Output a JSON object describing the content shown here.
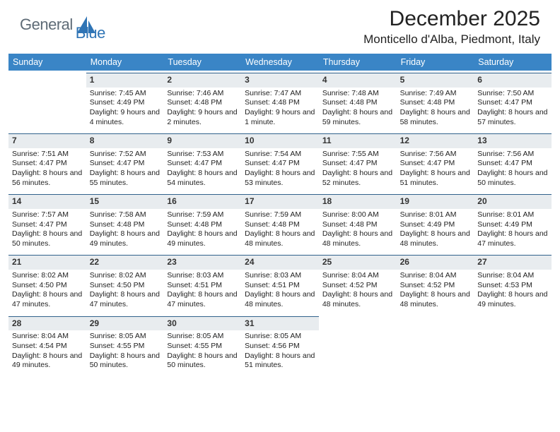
{
  "brand": {
    "word1": "General",
    "word2": "Blue",
    "icon_color": "#2f74b5",
    "text_color1": "#5e6b76"
  },
  "title": {
    "main": "December 2025",
    "sub": "Monticello d'Alba, Piedmont, Italy"
  },
  "colors": {
    "header_bg": "#3a85c6",
    "daynum_bg": "#e8ecef",
    "day_border": "#31628c"
  },
  "dow_labels": [
    "Sunday",
    "Monday",
    "Tuesday",
    "Wednesday",
    "Thursday",
    "Friday",
    "Saturday"
  ],
  "first_weekday_offset": 1,
  "days_in_month": 31,
  "days": {
    "1": {
      "sunrise": "7:45 AM",
      "sunset": "4:49 PM",
      "daylight": "9 hours and 4 minutes."
    },
    "2": {
      "sunrise": "7:46 AM",
      "sunset": "4:48 PM",
      "daylight": "9 hours and 2 minutes."
    },
    "3": {
      "sunrise": "7:47 AM",
      "sunset": "4:48 PM",
      "daylight": "9 hours and 1 minute."
    },
    "4": {
      "sunrise": "7:48 AM",
      "sunset": "4:48 PM",
      "daylight": "8 hours and 59 minutes."
    },
    "5": {
      "sunrise": "7:49 AM",
      "sunset": "4:48 PM",
      "daylight": "8 hours and 58 minutes."
    },
    "6": {
      "sunrise": "7:50 AM",
      "sunset": "4:47 PM",
      "daylight": "8 hours and 57 minutes."
    },
    "7": {
      "sunrise": "7:51 AM",
      "sunset": "4:47 PM",
      "daylight": "8 hours and 56 minutes."
    },
    "8": {
      "sunrise": "7:52 AM",
      "sunset": "4:47 PM",
      "daylight": "8 hours and 55 minutes."
    },
    "9": {
      "sunrise": "7:53 AM",
      "sunset": "4:47 PM",
      "daylight": "8 hours and 54 minutes."
    },
    "10": {
      "sunrise": "7:54 AM",
      "sunset": "4:47 PM",
      "daylight": "8 hours and 53 minutes."
    },
    "11": {
      "sunrise": "7:55 AM",
      "sunset": "4:47 PM",
      "daylight": "8 hours and 52 minutes."
    },
    "12": {
      "sunrise": "7:56 AM",
      "sunset": "4:47 PM",
      "daylight": "8 hours and 51 minutes."
    },
    "13": {
      "sunrise": "7:56 AM",
      "sunset": "4:47 PM",
      "daylight": "8 hours and 50 minutes."
    },
    "14": {
      "sunrise": "7:57 AM",
      "sunset": "4:47 PM",
      "daylight": "8 hours and 50 minutes."
    },
    "15": {
      "sunrise": "7:58 AM",
      "sunset": "4:48 PM",
      "daylight": "8 hours and 49 minutes."
    },
    "16": {
      "sunrise": "7:59 AM",
      "sunset": "4:48 PM",
      "daylight": "8 hours and 49 minutes."
    },
    "17": {
      "sunrise": "7:59 AM",
      "sunset": "4:48 PM",
      "daylight": "8 hours and 48 minutes."
    },
    "18": {
      "sunrise": "8:00 AM",
      "sunset": "4:48 PM",
      "daylight": "8 hours and 48 minutes."
    },
    "19": {
      "sunrise": "8:01 AM",
      "sunset": "4:49 PM",
      "daylight": "8 hours and 48 minutes."
    },
    "20": {
      "sunrise": "8:01 AM",
      "sunset": "4:49 PM",
      "daylight": "8 hours and 47 minutes."
    },
    "21": {
      "sunrise": "8:02 AM",
      "sunset": "4:50 PM",
      "daylight": "8 hours and 47 minutes."
    },
    "22": {
      "sunrise": "8:02 AM",
      "sunset": "4:50 PM",
      "daylight": "8 hours and 47 minutes."
    },
    "23": {
      "sunrise": "8:03 AM",
      "sunset": "4:51 PM",
      "daylight": "8 hours and 47 minutes."
    },
    "24": {
      "sunrise": "8:03 AM",
      "sunset": "4:51 PM",
      "daylight": "8 hours and 48 minutes."
    },
    "25": {
      "sunrise": "8:04 AM",
      "sunset": "4:52 PM",
      "daylight": "8 hours and 48 minutes."
    },
    "26": {
      "sunrise": "8:04 AM",
      "sunset": "4:52 PM",
      "daylight": "8 hours and 48 minutes."
    },
    "27": {
      "sunrise": "8:04 AM",
      "sunset": "4:53 PM",
      "daylight": "8 hours and 49 minutes."
    },
    "28": {
      "sunrise": "8:04 AM",
      "sunset": "4:54 PM",
      "daylight": "8 hours and 49 minutes."
    },
    "29": {
      "sunrise": "8:05 AM",
      "sunset": "4:55 PM",
      "daylight": "8 hours and 50 minutes."
    },
    "30": {
      "sunrise": "8:05 AM",
      "sunset": "4:55 PM",
      "daylight": "8 hours and 50 minutes."
    },
    "31": {
      "sunrise": "8:05 AM",
      "sunset": "4:56 PM",
      "daylight": "8 hours and 51 minutes."
    }
  },
  "labels": {
    "sunrise": "Sunrise:",
    "sunset": "Sunset:",
    "daylight": "Daylight:"
  }
}
